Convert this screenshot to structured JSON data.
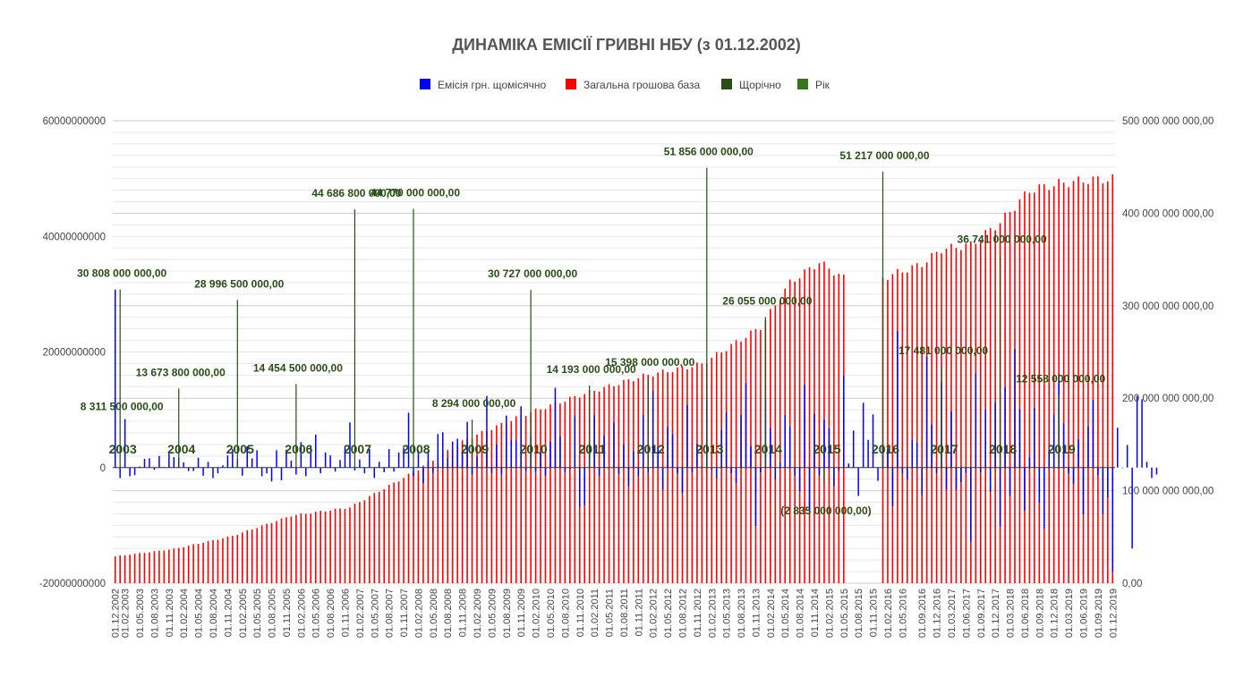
{
  "chart_data": {
    "type": "bar",
    "title": "ДИНАМІКА ЕМІСІЇ ГРИВНІ НБУ (з 01.12.2002)",
    "legend": {
      "placement": "top-center",
      "entries": [
        {
          "name": "Емісія грн. щомісячно",
          "color": "#0000ff"
        },
        {
          "name": "Загальна грошова база",
          "color": "#ff0000"
        },
        {
          "name": "Щорічно",
          "color": "#274e13"
        },
        {
          "name": "Рік",
          "color": "#38761d"
        }
      ]
    },
    "y_left": {
      "min": -20000000000,
      "max": 60000000000,
      "ticks": [
        "60000000000",
        "40000000000",
        "20000000000",
        "0",
        "-20000000000"
      ],
      "tick_values": [
        60000000000,
        40000000000,
        20000000000,
        0,
        -20000000000
      ]
    },
    "y_right": {
      "min": 0,
      "max": 500000000000,
      "ticks": [
        "500 000 000 000,00",
        "400 000 000 000,00",
        "300 000 000 000,00",
        "200 000 000 000,00",
        "100 000 000 000,00",
        "0,00"
      ],
      "tick_values": [
        500000000000,
        400000000000,
        300000000000,
        200000000000,
        100000000000,
        0
      ]
    },
    "grid": true,
    "x_start": "2002-12",
    "x_months": 205,
    "x_tick_labels": [
      "01.12.2002",
      "01.02.2003",
      "01.05.2003",
      "01.08.2003",
      "01.11.2003",
      "01.02.2004",
      "01.05.2004",
      "01.08.2004",
      "01.11.2004",
      "01.02.2005",
      "01.05.2005",
      "01.08.2005",
      "01.11.2005",
      "01.02.2006",
      "01.05.2006",
      "01.08.2006",
      "01.11.2006",
      "01.02.2007",
      "01.05.2007",
      "01.08.2007",
      "01.11.2007",
      "01.02.2008",
      "01.05.2008",
      "01.08.2008",
      "01.11.2008",
      "01.02.2009",
      "01.05.2009",
      "01.08.2009",
      "01.11.2009",
      "01.02.2010",
      "01.05.2010",
      "01.08.2010",
      "01.11.2010",
      "01.02.2011",
      "01.05.2011",
      "01.08.2011",
      "01.11.2011",
      "01.02.2012",
      "01.05.2012",
      "01.08.2012",
      "01.11.2012",
      "01.02.2013",
      "01.05.2013",
      "01.08.2013",
      "01.11.2013",
      "01.02.2014",
      "01.05.2014",
      "01.08.2014",
      "01.11.2014",
      "01.02.2015",
      "01.05.2015",
      "01.08.2015",
      "01.11.2015",
      "01.02.2016",
      "01.05.2016",
      "01.09.2016",
      "01.12.2016",
      "01.03.2017",
      "01.06.2017",
      "01.09.2017",
      "01.12.2017",
      "01.03.2018",
      "01.06.2018",
      "01.09.2018",
      "01.12.2018",
      "01.03.2019",
      "01.06.2019",
      "01.09.2019",
      "01.12.2019"
    ],
    "years": [
      {
        "label": "2003",
        "month": 1
      },
      {
        "label": "2004",
        "month": 13
      },
      {
        "label": "2005",
        "month": 25
      },
      {
        "label": "2006",
        "month": 37
      },
      {
        "label": "2007",
        "month": 49
      },
      {
        "label": "2008",
        "month": 61
      },
      {
        "label": "2009",
        "month": 73
      },
      {
        "label": "2010",
        "month": 85
      },
      {
        "label": "2011",
        "month": 97
      },
      {
        "label": "2012",
        "month": 109
      },
      {
        "label": "2013",
        "month": 121
      },
      {
        "label": "2014",
        "month": 133
      },
      {
        "label": "2015",
        "month": 145
      },
      {
        "label": "2016",
        "month": 157
      },
      {
        "label": "2017",
        "month": 169
      },
      {
        "label": "2018",
        "month": 181
      },
      {
        "label": "2019",
        "month": 193
      }
    ],
    "base_gaps": [
      [
        150,
        156
      ]
    ],
    "base_points": [
      [
        0,
        29000000000
      ],
      [
        12,
        37000000000
      ],
      [
        24,
        51000000000
      ],
      [
        36,
        73000000000
      ],
      [
        48,
        82000000000
      ],
      [
        60,
        117000000000
      ],
      [
        72,
        156000000000
      ],
      [
        84,
        183000000000
      ],
      [
        96,
        205000000000
      ],
      [
        108,
        224000000000
      ],
      [
        120,
        237000000000
      ],
      [
        132,
        277000000000
      ],
      [
        138,
        325000000000
      ],
      [
        144,
        347000000000
      ],
      [
        149,
        330000000000
      ],
      [
        157,
        330000000000
      ],
      [
        165,
        345000000000
      ],
      [
        169,
        361000000000
      ],
      [
        175,
        366000000000
      ],
      [
        181,
        390000000000
      ],
      [
        187,
        425000000000
      ],
      [
        193,
        432000000000
      ],
      [
        199,
        436000000000
      ],
      [
        204,
        437000000000
      ]
    ],
    "annual": [
      {
        "month": 1,
        "value": 30808000000
      },
      {
        "month": 13,
        "value": 13673800000
      },
      {
        "month": 25,
        "value": 28996500000
      },
      {
        "month": 37,
        "value": 14454500000
      },
      {
        "month": 49,
        "value": 44686800000
      },
      {
        "month": 61,
        "value": 44770000000
      },
      {
        "month": 73,
        "value": 8294000000
      },
      {
        "month": 85,
        "value": 30727000000
      },
      {
        "month": 97,
        "value": 14193000000
      },
      {
        "month": 109,
        "value": 15398000000
      },
      {
        "month": 121,
        "value": 51856000000
      },
      {
        "month": 133,
        "value": 26055000000
      },
      {
        "month": 145,
        "value": -2835000000
      },
      {
        "month": 157,
        "value": 51217000000
      },
      {
        "month": 169,
        "value": 17481000000
      },
      {
        "month": 181,
        "value": 36741000000
      },
      {
        "month": 193,
        "value": 12558000000
      }
    ],
    "annotations": [
      {
        "text": "30 808 000 000,00",
        "month": 1
      },
      {
        "text": "8 311 500 000,00",
        "month": 1
      },
      {
        "text": "13 673 800 000,00",
        "month": 13
      },
      {
        "text": "28 996 500 000,00",
        "month": 25
      },
      {
        "text": "14 454 500 000,00",
        "month": 37
      },
      {
        "text": "44 686 800 000,00",
        "month": 49
      },
      {
        "text": "44 770 000 000,00",
        "month": 61
      },
      {
        "text": "8 294 000 000,00",
        "month": 73
      },
      {
        "text": "30 727 000 000,00",
        "month": 85
      },
      {
        "text": "14 193 000 000,00",
        "month": 97
      },
      {
        "text": "15 398 000 000,00",
        "month": 109
      },
      {
        "text": "51 856 000 000,00",
        "month": 121
      },
      {
        "text": "26 055 000 000,00",
        "month": 133
      },
      {
        "text": "(2 835 000 000,00)",
        "month": 145
      },
      {
        "text": "51 217 000 000,00",
        "month": 157
      },
      {
        "text": "17 481 000 000,00",
        "month": 169
      },
      {
        "text": "36 741 000 000,00",
        "month": 181
      },
      {
        "text": "12 558 000 000,00",
        "month": 193
      }
    ],
    "monthly_emission": [
      3080,
      -180,
      840,
      -150,
      -130,
      20,
      150,
      160,
      -40,
      200,
      10,
      240,
      180,
      170,
      90,
      -60,
      -60,
      170,
      -140,
      100,
      -180,
      -100,
      40,
      210,
      320,
      150,
      -140,
      370,
      160,
      300,
      -150,
      -100,
      -240,
      300,
      -220,
      310,
      120,
      -120,
      440,
      -150,
      370,
      570,
      -100,
      260,
      210,
      -70,
      130,
      350,
      780,
      -50,
      140,
      -100,
      320,
      -180,
      100,
      -80,
      320,
      -70,
      260,
      340,
      950,
      -150,
      300,
      -270,
      290,
      -90,
      580,
      610,
      170,
      450,
      500,
      240,
      790,
      -120,
      190,
      0,
      1240,
      -90,
      400,
      -120,
      900,
      480,
      470,
      1060,
      -60,
      540,
      -70,
      260,
      -140,
      450,
      1380,
      540,
      -80,
      -20,
      900,
      -680,
      -650,
      410,
      900,
      -150,
      550,
      0,
      780,
      -110,
      400,
      -320,
      280,
      -150,
      910,
      -90,
      1330,
      360,
      -380,
      700,
      580,
      -100,
      -440,
      1080,
      -80,
      410,
      0,
      1160,
      -40,
      -180,
      650,
      960,
      -100,
      -270,
      910,
      1460,
      370,
      -1010,
      -80,
      1180,
      680,
      -210,
      90,
      910,
      710,
      -140,
      -410,
      1430,
      -740,
      930,
      -140,
      830,
      680,
      -320,
      -60,
      1590,
      70,
      640,
      -490,
      1120,
      480,
      920,
      -230,
      390,
      320,
      -670,
      2360,
      -100,
      -210,
      490,
      430,
      -470,
      1920,
      740,
      -100,
      1480,
      -380,
      970,
      -390,
      -250,
      -90,
      -1280,
      1630,
      -80,
      1010,
      -420,
      1130,
      -1020,
      1390,
      -490,
      2050,
      1010,
      -740,
      180,
      1030,
      -610,
      -1060,
      310,
      920,
      1610,
      770,
      -100,
      -280,
      490,
      -810,
      710,
      1170,
      -130,
      -800,
      -520,
      -1800,
      690,
      0,
      390,
      -1400,
      1240,
      1180,
      100,
      -180,
      -120
    ]
  }
}
